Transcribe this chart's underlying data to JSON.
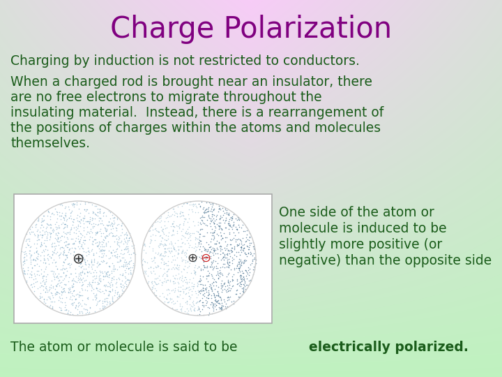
{
  "title": "Charge Polarization",
  "title_color": "#800080",
  "title_fontsize": 30,
  "text_color": "#1a5c1a",
  "text_fontsize": 13.5,
  "line1": "Charging by induction is not restricted to conductors.",
  "para1_lines": [
    "When a charged rod is brought near an insulator, there",
    "are no free electrons to migrate throughout the",
    "insulating material.  Instead, there is a rearrangement of",
    "the positions of charges within the atoms and molecules",
    "themselves."
  ],
  "side_text_lines": [
    "One side of the atom or",
    "molecule is induced to be",
    "slightly more positive (or",
    "negative) than the opposite side"
  ],
  "bottom_text_plain": "The atom or molecule is said to be ",
  "bottom_text_bold": "electrically polarized.",
  "dot_color": "#7aaccc",
  "dot_color_dense": "#3a7090"
}
